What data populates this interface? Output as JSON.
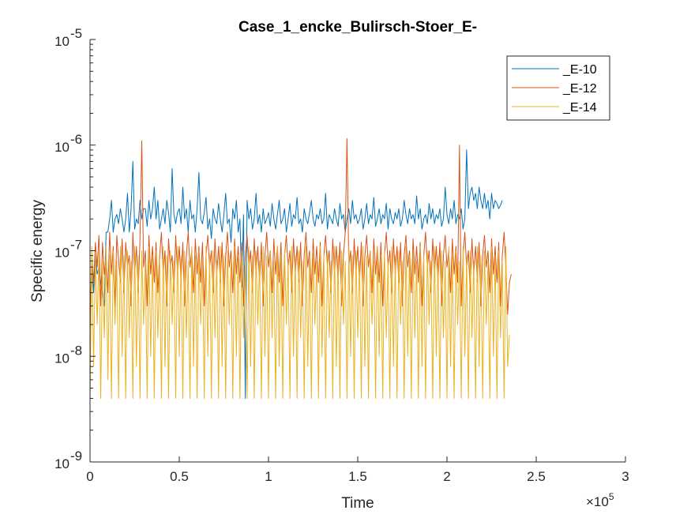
{
  "chart_data": {
    "type": "line",
    "title": "Case_1_encke_Bulirsch-Stoer_E-",
    "xlabel": "Time",
    "ylabel": "Specific energy",
    "x_multiplier": "×10",
    "x_multiplier_exp": "5",
    "xlim": [
      0,
      300000
    ],
    "ylim": [
      1e-09,
      1e-05
    ],
    "yscale": "log",
    "x_ticks": [
      0,
      50000,
      100000,
      150000,
      200000,
      250000,
      300000
    ],
    "x_tick_labels": [
      "0",
      "0.5",
      "1",
      "1.5",
      "2",
      "2.5",
      "3"
    ],
    "y_ticks": [
      1e-09,
      1e-08,
      1e-07,
      1e-06,
      1e-05
    ],
    "y_tick_base": "10",
    "y_tick_exps": [
      "-9",
      "-8",
      "-7",
      "-6",
      "-5"
    ],
    "grid": false,
    "legend_position": "top-right",
    "sample_interval": 1000,
    "series": [
      {
        "name": "_E-10",
        "color": "#0072BD",
        "x_start": 0,
        "values": [
          1e-08,
          8.5e-08,
          4e-08,
          9e-08,
          6e-08,
          7e-08,
          5e-08,
          4e-08,
          3e-08,
          1.5e-07,
          1.5e-07,
          2e-07,
          3e-07,
          1.5e-07,
          2e-07,
          2.2e-07,
          1.8e-07,
          2.5e-07,
          2e-07,
          1.5e-07,
          2e-07,
          3.5e-07,
          1.5e-07,
          2.5e-07,
          7e-07,
          1.6e-07,
          2e-07,
          1.8e-07,
          3e-07,
          2e-07,
          2.5e-07,
          2.5e-07,
          1.7e-07,
          3e-07,
          2e-07,
          2.5e-07,
          4e-07,
          2e-07,
          3e-07,
          1.6e-07,
          2e-07,
          2.5e-07,
          1.8e-07,
          3e-07,
          2.3e-07,
          1.5e-07,
          6e-07,
          2.2e-07,
          1.8e-07,
          2.3e-07,
          2.5e-07,
          1.8e-07,
          4e-07,
          2e-07,
          2.5e-07,
          1.5e-07,
          3e-07,
          2e-07,
          2.2e-07,
          1.5e-07,
          2.5e-07,
          5.5e-07,
          2e-07,
          1.8e-07,
          2.3e-07,
          3.2e-07,
          1.6e-07,
          2e-07,
          1.3e-07,
          2.5e-07,
          2e-07,
          1.8e-07,
          2.8e-07,
          2e-07,
          1.5e-07,
          2.2e-07,
          3.5e-07,
          1.8e-07,
          2e-07,
          1.2e-07,
          2.5e-07,
          2e-07,
          3e-07,
          1.5e-07,
          2e-07,
          4.5e-08,
          2.2e-07,
          4e-09,
          3e-07,
          2e-07,
          2.5e-07,
          1.6e-07,
          2e-07,
          3.5e-07,
          1.8e-07,
          2.2e-07,
          1.5e-07,
          2.5e-07,
          1.8e-07,
          2e-07,
          2.3e-07,
          1.7e-07,
          2.8e-07,
          2e-07,
          1.6e-07,
          2.2e-07,
          3e-07,
          1.8e-07,
          2e-07,
          2.5e-07,
          1.5e-07,
          2e-07,
          2.8e-07,
          1.7e-07,
          2.2e-07,
          2e-07,
          3.2e-07,
          1.8e-07,
          2e-07,
          1.5e-07,
          2.5e-07,
          2e-07,
          1.8e-07,
          2.3e-07,
          3e-07,
          2e-07,
          1.7e-07,
          2.2e-07,
          2e-07,
          2.5e-07,
          1.8e-07,
          2e-07,
          3.5e-07,
          1.6e-07,
          2.2e-07,
          2e-07,
          1.8e-07,
          2.5e-07,
          2e-07,
          1.7e-07,
          2.8e-07,
          2e-07,
          2.2e-07,
          1.5e-07,
          2e-07,
          2.5e-07,
          1.8e-07,
          3e-07,
          2e-07,
          2.2e-07,
          1.8e-07,
          2e-07,
          2.5e-07,
          1.6e-07,
          2e-07,
          2.8e-07,
          1.8e-07,
          2.2e-07,
          2e-07,
          3.2e-07,
          1.7e-07,
          2e-07,
          2.5e-07,
          1.8e-07,
          2.2e-07,
          2e-07,
          2.8e-07,
          1.6e-07,
          2.5e-07,
          2e-07,
          1.8e-07,
          2.3e-07,
          2e-07,
          2.5e-07,
          1.7e-07,
          2e-07,
          3e-07,
          2.2e-07,
          1.8e-07,
          2.5e-07,
          2e-07,
          2.2e-07,
          1.8e-07,
          3.3e-07,
          2e-07,
          2.5e-07,
          1.6e-07,
          2e-07,
          2.2e-07,
          1.8e-07,
          2.8e-07,
          2e-07,
          2.5e-07,
          1.8e-07,
          2.2e-07,
          2e-07,
          2.5e-07,
          1.7e-07,
          2e-07,
          4e-07,
          2.2e-07,
          1.8e-07,
          2.5e-07,
          2e-07,
          3e-07,
          1.8e-07,
          2.2e-07,
          2e-07,
          2.5e-07,
          1.6e-07,
          2e-07,
          9e-07,
          2.5e-07,
          3.5e-07,
          4e-07,
          3e-07,
          3.5e-07,
          2.5e-07,
          4e-07,
          3e-07,
          2.5e-07,
          3.5e-07,
          2.5e-07,
          3e-07,
          2e-07,
          3.5e-07,
          2.5e-07,
          3e-07,
          2.8e-07,
          2.5e-07,
          2.7e-07,
          3e-07
        ]
      },
      {
        "name": "_E-12",
        "color": "#D95319",
        "x_start": 0,
        "values": [
          2e-08,
          9e-08,
          5e-08,
          1.2e-07,
          7e-08,
          1.4e-07,
          3e-08,
          1.2e-07,
          6e-08,
          9e-08,
          4e-08,
          1.5e-07,
          6e-08,
          1.1e-07,
          3e-08,
          1.4e-07,
          8e-08,
          5e-08,
          1.3e-07,
          4e-08,
          1.2e-07,
          7e-08,
          9e-08,
          3e-08,
          1.5e-07,
          6e-08,
          1.1e-07,
          4e-08,
          1.3e-07,
          1.1e-06,
          7e-08,
          1e-07,
          3e-08,
          1.4e-07,
          6e-08,
          1.1e-07,
          5e-08,
          1.2e-07,
          4e-08,
          9e-08,
          1.5e-07,
          6e-08,
          1e-07,
          3e-08,
          1.3e-07,
          7e-08,
          9e-08,
          4e-08,
          1.4e-07,
          6e-08,
          1.1e-07,
          5e-08,
          1.2e-07,
          3e-08,
          9e-08,
          1.5e-07,
          7e-08,
          1e-07,
          4e-08,
          1.3e-07,
          6e-08,
          1.1e-07,
          5e-08,
          1.2e-07,
          3e-08,
          9e-08,
          1.4e-07,
          7e-08,
          1e-07,
          4e-08,
          1.3e-07,
          6e-08,
          1.1e-07,
          5e-08,
          1.2e-07,
          3e-08,
          9e-08,
          1.5e-07,
          7e-08,
          1e-07,
          4e-08,
          1.3e-07,
          6e-08,
          1.1e-07,
          5e-08,
          1.2e-07,
          3e-08,
          9e-08,
          1.4e-07,
          7e-08,
          1e-07,
          4e-08,
          1.3e-07,
          6e-08,
          1.1e-07,
          5e-08,
          1.2e-07,
          3e-08,
          9e-08,
          1.5e-07,
          7e-08,
          1e-07,
          4e-08,
          1.3e-07,
          6e-08,
          1.1e-07,
          5e-08,
          1.2e-07,
          3e-08,
          9e-08,
          1.4e-07,
          7e-08,
          1e-07,
          4e-08,
          1.3e-07,
          6e-08,
          1.1e-07,
          5e-08,
          1.2e-07,
          3e-08,
          9e-08,
          1.5e-07,
          7e-08,
          1e-07,
          4e-08,
          1.3e-07,
          6e-08,
          1.1e-07,
          5e-08,
          1.2e-07,
          3e-08,
          9e-08,
          1.4e-07,
          7e-08,
          1e-07,
          4e-08,
          1.3e-07,
          6e-08,
          1.1e-07,
          5e-08,
          1.2e-07,
          3e-08,
          9e-08,
          1.5e-07,
          1.15e-06,
          7e-08,
          1e-07,
          4e-08,
          1.3e-07,
          6e-08,
          1.1e-07,
          5e-08,
          1.2e-07,
          3e-08,
          9e-08,
          1.4e-07,
          7e-08,
          1e-07,
          4e-08,
          1.3e-07,
          6e-08,
          1.1e-07,
          5e-08,
          1.2e-07,
          3e-08,
          9e-08,
          1.5e-07,
          7e-08,
          1e-07,
          4e-08,
          1.3e-07,
          6e-08,
          1.1e-07,
          5e-08,
          1.2e-07,
          3e-08,
          9e-08,
          1.4e-07,
          7e-08,
          1e-07,
          4e-08,
          1.3e-07,
          6e-08,
          1.1e-07,
          5e-08,
          1.2e-07,
          3e-08,
          9e-08,
          1.5e-07,
          7e-08,
          1e-07,
          4e-08,
          1.3e-07,
          6e-08,
          1.1e-07,
          5e-08,
          1.2e-07,
          3e-08,
          9e-08,
          1.4e-07,
          7e-08,
          1e-07,
          4e-08,
          1.3e-07,
          6e-08,
          1.1e-07,
          5e-08,
          1e-06,
          3e-08,
          9e-08,
          1.5e-07,
          7e-08,
          1e-07,
          4e-08,
          1.3e-07,
          6e-08,
          1.1e-07,
          5e-08,
          1.2e-07,
          3e-08,
          9e-08,
          1.4e-07,
          7e-08,
          1e-07,
          4e-08,
          1.3e-07,
          6e-08,
          1.1e-07,
          5e-08,
          1.2e-07,
          3e-08,
          9e-08,
          1.5e-07,
          7e-08,
          2.5e-08,
          5e-08,
          6e-08
        ]
      },
      {
        "name": "_E-14",
        "color": "#EDB120",
        "x_start": 0,
        "values": [
          4e-09,
          1.1e-07,
          8e-09,
          9e-08,
          2e-08,
          1e-07,
          4e-09,
          8e-08,
          1.5e-08,
          1.1e-07,
          6e-09,
          9e-08,
          4e-09,
          1e-07,
          2e-08,
          8e-08,
          4e-09,
          1.1e-07,
          1e-08,
          9e-08,
          4e-09,
          1e-07,
          1.5e-08,
          8e-08,
          4e-09,
          1.1e-07,
          8e-09,
          9e-08,
          4e-09,
          1e-07,
          2e-08,
          8e-08,
          4e-09,
          1.1e-07,
          1e-08,
          9e-08,
          4e-09,
          1e-07,
          1.5e-08,
          8e-08,
          4e-09,
          1.1e-07,
          8e-09,
          9e-08,
          4e-09,
          1e-07,
          2e-08,
          8e-08,
          4e-09,
          1.1e-07,
          1e-08,
          9e-08,
          4e-09,
          1e-07,
          1.5e-08,
          8e-08,
          4e-09,
          1.1e-07,
          8e-09,
          9e-08,
          4e-09,
          1e-07,
          2e-08,
          8e-08,
          4e-09,
          1.1e-07,
          1e-08,
          9e-08,
          4e-09,
          1e-07,
          1.5e-08,
          8e-08,
          4e-09,
          1.1e-07,
          8e-09,
          9e-08,
          4e-09,
          1e-07,
          2e-08,
          8e-08,
          4e-09,
          1.1e-07,
          1e-08,
          9e-08,
          4e-09,
          1e-07,
          1.5e-08,
          8e-08,
          4e-09,
          1.1e-07,
          8e-09,
          9e-08,
          4e-09,
          1e-07,
          2e-08,
          8e-08,
          4e-09,
          1.1e-07,
          1e-08,
          9e-08,
          4e-09,
          1e-07,
          1.5e-08,
          8e-08,
          4e-09,
          1.1e-07,
          8e-09,
          9e-08,
          4e-09,
          1e-07,
          2e-08,
          8e-08,
          4e-09,
          1.1e-07,
          1e-08,
          9e-08,
          4e-09,
          1e-07,
          1.5e-08,
          8e-08,
          4e-09,
          1.1e-07,
          8e-09,
          9e-08,
          4e-09,
          1e-07,
          2e-08,
          8e-08,
          4e-09,
          1.1e-07,
          1e-08,
          9e-08,
          4e-09,
          1e-07,
          1.5e-08,
          8e-08,
          4e-09,
          1.1e-07,
          8e-09,
          9e-08,
          4e-09,
          1e-07,
          2e-08,
          8e-08,
          4e-09,
          1.1e-07,
          1e-08,
          9e-08,
          4e-09,
          1e-07,
          1.5e-08,
          8e-08,
          4e-09,
          1.1e-07,
          8e-09,
          9e-08,
          4e-09,
          1e-07,
          2e-08,
          8e-08,
          4e-09,
          1.1e-07,
          1e-08,
          9e-08,
          4e-09,
          1e-07,
          1.5e-08,
          8e-08,
          4e-09,
          1.1e-07,
          8e-09,
          9e-08,
          4e-09,
          1e-07,
          2e-08,
          8e-08,
          4e-09,
          1.1e-07,
          1e-08,
          9e-08,
          4e-09,
          1e-07,
          1.5e-08,
          8e-08,
          4e-09,
          1.1e-07,
          8e-09,
          9e-08,
          4e-09,
          1e-07,
          2e-08,
          8e-08,
          4e-09,
          1.1e-07,
          1e-08,
          9e-08,
          4e-09,
          1e-07,
          1.5e-08,
          8e-08,
          4e-09,
          1.1e-07,
          8e-09,
          9e-08,
          4e-09,
          1e-07,
          2e-08,
          8e-08,
          4e-09,
          1.1e-07,
          1e-08,
          9e-08,
          4e-09,
          1e-07,
          1.5e-08,
          8e-08,
          4e-09,
          1.1e-07,
          8e-09,
          9e-08,
          4e-09,
          1e-07,
          2e-08,
          8e-08,
          4e-09,
          1.1e-07,
          1e-08,
          9e-08,
          4e-09,
          1e-07,
          1.5e-08,
          8e-08,
          4e-09,
          1.1e-07,
          8e-09,
          1.6e-08
        ]
      }
    ]
  }
}
